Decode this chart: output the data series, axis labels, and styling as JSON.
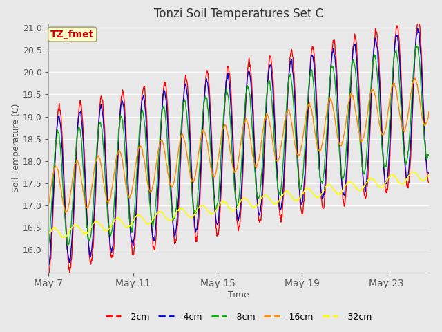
{
  "title": "Tonzi Soil Temperatures Set C",
  "xlabel": "Time",
  "ylabel": "Soil Temperature (C)",
  "ylim": [
    15.5,
    21.1
  ],
  "yticks": [
    16.0,
    16.5,
    17.0,
    17.5,
    18.0,
    18.5,
    19.0,
    19.5,
    20.0,
    20.5,
    21.0
  ],
  "xtick_labels": [
    "May 7",
    "May 11",
    "May 15",
    "May 19",
    "May 23"
  ],
  "xtick_positions": [
    0,
    4,
    8,
    12,
    16
  ],
  "xlim": [
    0,
    18
  ],
  "colors": {
    "-2cm": "#ff0000",
    "-4cm": "#0000cc",
    "-8cm": "#00aa00",
    "-16cm": "#ff8800",
    "-32cm": "#ffff00"
  },
  "label_box_text": "TZ_fmet",
  "label_box_facecolor": "#ffffcc",
  "label_box_edgecolor": "#999966",
  "label_box_textcolor": "#cc0000",
  "fig_facecolor": "#e8e8e8",
  "ax_facecolor": "#e8e8e8",
  "grid_color": "#ffffff",
  "n_days": 18,
  "spd": 48,
  "base_start": 17.3,
  "trend_per_day": 0.115,
  "amp_2cm": 1.85,
  "amp_4cm": 1.65,
  "amp_8cm": 1.3,
  "amp_16cm": 0.55,
  "amp_32cm": 0.12,
  "phase_2cm": 0.0,
  "phase_4cm": 0.12,
  "phase_8cm": 0.42,
  "phase_16cm": 1.05,
  "phase_32cm": 0.0,
  "start_32cm": 16.35,
  "trend_32cm": 0.075
}
